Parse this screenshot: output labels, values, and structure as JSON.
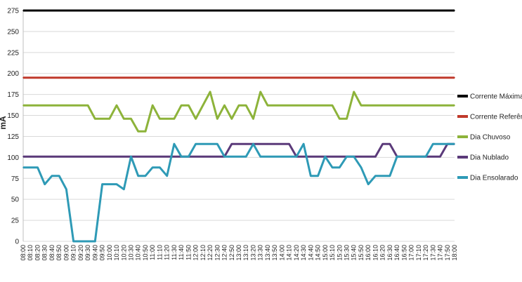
{
  "chart_data": {
    "type": "line",
    "ylabel": "mA",
    "xlabel": "",
    "ylim": [
      0,
      275
    ],
    "yticks": [
      0,
      25,
      50,
      75,
      100,
      125,
      150,
      175,
      200,
      225,
      250,
      275
    ],
    "grid": true,
    "legend_position": "right",
    "categories": [
      "08:00",
      "08:10",
      "08:20",
      "08:30",
      "08:40",
      "08:50",
      "09:00",
      "09:10",
      "09:20",
      "09:30",
      "09:40",
      "09:50",
      "10:00",
      "10:10",
      "10:20",
      "10:30",
      "10:40",
      "10:50",
      "11:00",
      "11:10",
      "11:20",
      "11:30",
      "11:40",
      "11:50",
      "12:00",
      "12:10",
      "12:20",
      "12:30",
      "12:40",
      "12:50",
      "13:00",
      "13:10",
      "13:20",
      "13:30",
      "13:40",
      "13:50",
      "14:00",
      "14:10",
      "14:20",
      "14:30",
      "14:40",
      "14:50",
      "15:00",
      "15:10",
      "15:20",
      "15:30",
      "15:40",
      "15:50",
      "16:00",
      "16:10",
      "16:20",
      "16:30",
      "16:40",
      "16:50",
      "17:00",
      "17:10",
      "17:20",
      "17:30",
      "17:40",
      "17:50",
      "18:00"
    ],
    "series": [
      {
        "name": "Corrente Máxima",
        "color": "#000000",
        "values": [
          275,
          275,
          275,
          275,
          275,
          275,
          275,
          275,
          275,
          275,
          275,
          275,
          275,
          275,
          275,
          275,
          275,
          275,
          275,
          275,
          275,
          275,
          275,
          275,
          275,
          275,
          275,
          275,
          275,
          275,
          275,
          275,
          275,
          275,
          275,
          275,
          275,
          275,
          275,
          275,
          275,
          275,
          275,
          275,
          275,
          275,
          275,
          275,
          275,
          275,
          275,
          275,
          275,
          275,
          275,
          275,
          275,
          275,
          275,
          275,
          275
        ]
      },
      {
        "name": "Corrente Referência",
        "color": "#c0392b",
        "values": [
          195,
          195,
          195,
          195,
          195,
          195,
          195,
          195,
          195,
          195,
          195,
          195,
          195,
          195,
          195,
          195,
          195,
          195,
          195,
          195,
          195,
          195,
          195,
          195,
          195,
          195,
          195,
          195,
          195,
          195,
          195,
          195,
          195,
          195,
          195,
          195,
          195,
          195,
          195,
          195,
          195,
          195,
          195,
          195,
          195,
          195,
          195,
          195,
          195,
          195,
          195,
          195,
          195,
          195,
          195,
          195,
          195,
          195,
          195,
          195,
          195
        ]
      },
      {
        "name": "Dia Chuvoso",
        "color": "#8db33a",
        "values": [
          162,
          162,
          162,
          162,
          162,
          162,
          162,
          162,
          162,
          162,
          146,
          146,
          146,
          162,
          146,
          146,
          131,
          131,
          162,
          146,
          146,
          146,
          162,
          162,
          146,
          162,
          178,
          146,
          162,
          146,
          162,
          162,
          146,
          178,
          162,
          162,
          162,
          162,
          162,
          162,
          162,
          162,
          162,
          162,
          146,
          146,
          178,
          162,
          162,
          162,
          162,
          162,
          162,
          162,
          162,
          162,
          162,
          162,
          162,
          162,
          162
        ]
      },
      {
        "name": "Dia Nublado",
        "color": "#5b3a7a",
        "values": [
          101,
          101,
          101,
          101,
          101,
          101,
          101,
          101,
          101,
          101,
          101,
          101,
          101,
          101,
          101,
          101,
          101,
          101,
          101,
          101,
          101,
          101,
          101,
          101,
          101,
          101,
          101,
          101,
          101,
          116,
          116,
          116,
          116,
          116,
          116,
          116,
          116,
          116,
          101,
          101,
          101,
          101,
          101,
          101,
          101,
          101,
          101,
          101,
          101,
          101,
          116,
          116,
          101,
          101,
          101,
          101,
          101,
          101,
          101,
          116,
          116
        ]
      },
      {
        "name": "Dia Ensolarado",
        "color": "#2e9ab6",
        "values": [
          88,
          88,
          88,
          68,
          78,
          78,
          62,
          0,
          0,
          0,
          0,
          68,
          68,
          68,
          62,
          101,
          78,
          78,
          88,
          88,
          78,
          116,
          101,
          101,
          116,
          116,
          116,
          116,
          101,
          101,
          101,
          101,
          116,
          101,
          101,
          101,
          101,
          101,
          101,
          116,
          78,
          78,
          101,
          88,
          88,
          101,
          101,
          88,
          68,
          78,
          78,
          78,
          101,
          101,
          101,
          101,
          101,
          116,
          116,
          116,
          116
        ]
      }
    ]
  }
}
